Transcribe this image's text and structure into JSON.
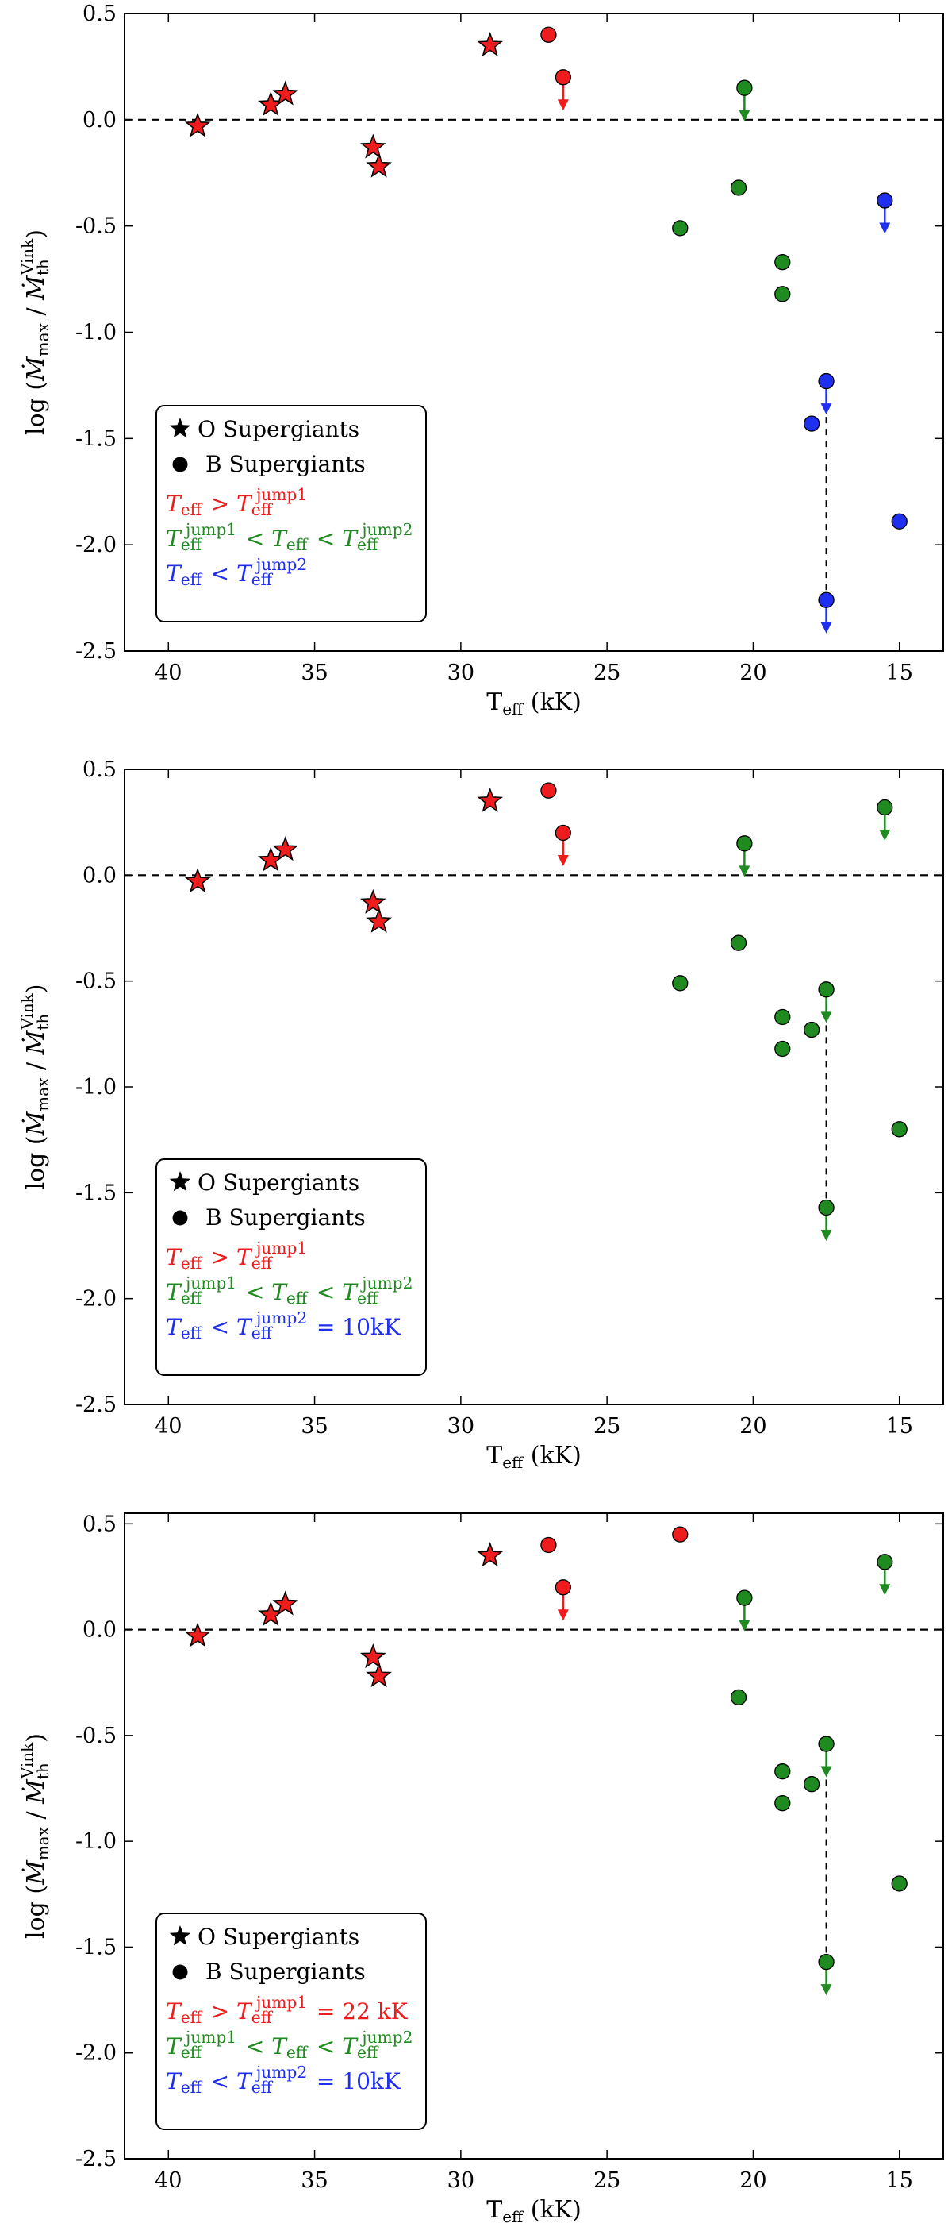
{
  "colors": {
    "red": "#ee1c1c",
    "green": "#1f8a1f",
    "blue": "#1f2ff0",
    "axis": "#000000"
  },
  "chart_data": [
    {
      "type": "scatter",
      "panel": "top",
      "xlabel": "T_eff (kK)",
      "ylabel": "log (Ṁ_max / Ṁ_th^Vink)",
      "xlim": [
        41.5,
        13.5
      ],
      "ylim": [
        -2.5,
        0.5
      ],
      "x_ticks": [
        40,
        35,
        30,
        25,
        20,
        15
      ],
      "y_ticks": [
        0.5,
        0.0,
        -0.5,
        -1.0,
        -1.5,
        -2.0,
        -2.5
      ],
      "reference_line": 0.0,
      "points": [
        {
          "x": 39.0,
          "y": -0.03,
          "marker": "star",
          "color": "red",
          "upper_limit": false
        },
        {
          "x": 36.5,
          "y": 0.07,
          "marker": "star",
          "color": "red",
          "upper_limit": false
        },
        {
          "x": 36.0,
          "y": 0.12,
          "marker": "star",
          "color": "red",
          "upper_limit": false
        },
        {
          "x": 33.0,
          "y": -0.13,
          "marker": "star",
          "color": "red",
          "upper_limit": false
        },
        {
          "x": 32.8,
          "y": -0.22,
          "marker": "star",
          "color": "red",
          "upper_limit": false
        },
        {
          "x": 29.0,
          "y": 0.35,
          "marker": "star",
          "color": "red",
          "upper_limit": false
        },
        {
          "x": 27.0,
          "y": 0.4,
          "marker": "circle",
          "color": "red",
          "upper_limit": false
        },
        {
          "x": 26.5,
          "y": 0.2,
          "marker": "circle",
          "color": "red",
          "upper_limit": true
        },
        {
          "x": 22.5,
          "y": -0.51,
          "marker": "circle",
          "color": "green",
          "upper_limit": false
        },
        {
          "x": 20.5,
          "y": -0.32,
          "marker": "circle",
          "color": "green",
          "upper_limit": false
        },
        {
          "x": 20.3,
          "y": 0.15,
          "marker": "circle",
          "color": "green",
          "upper_limit": true
        },
        {
          "x": 19.0,
          "y": -0.67,
          "marker": "circle",
          "color": "green",
          "upper_limit": false
        },
        {
          "x": 19.0,
          "y": -0.82,
          "marker": "circle",
          "color": "green",
          "upper_limit": false
        },
        {
          "x": 18.0,
          "y": -1.43,
          "marker": "circle",
          "color": "blue",
          "upper_limit": false
        },
        {
          "x": 17.5,
          "y": -1.23,
          "marker": "circle",
          "color": "blue",
          "upper_limit": true
        },
        {
          "x": 17.5,
          "y": -2.26,
          "marker": "circle",
          "color": "blue",
          "upper_limit": true
        },
        {
          "x": 15.5,
          "y": -0.38,
          "marker": "circle",
          "color": "blue",
          "upper_limit": true
        },
        {
          "x": 15.0,
          "y": -1.89,
          "marker": "circle",
          "color": "blue",
          "upper_limit": false
        }
      ],
      "connectors": [
        {
          "x": 17.5,
          "y1": -1.23,
          "y2": -2.26
        }
      ],
      "legend": {
        "position": "lower-left",
        "entries": [
          {
            "marker": "star",
            "color": "black",
            "label": "O Supergiants"
          },
          {
            "marker": "circle",
            "color": "black",
            "label": "B Supergiants"
          },
          {
            "marker": "none",
            "color": "red",
            "label": "T_eff > T_eff^jump1"
          },
          {
            "marker": "none",
            "color": "green",
            "label": "T_eff^jump1 < T_eff < T_eff^jump2"
          },
          {
            "marker": "none",
            "color": "blue",
            "label": "T_eff < T_eff^jump2"
          }
        ]
      }
    },
    {
      "type": "scatter",
      "panel": "middle",
      "xlabel": "T_eff (kK)",
      "ylabel": "log (Ṁ_max / Ṁ_th^Vink)",
      "xlim": [
        41.5,
        13.5
      ],
      "ylim": [
        -2.5,
        0.5
      ],
      "x_ticks": [
        40,
        35,
        30,
        25,
        20,
        15
      ],
      "y_ticks": [
        0.5,
        0.0,
        -0.5,
        -1.0,
        -1.5,
        -2.0,
        -2.5
      ],
      "reference_line": 0.0,
      "points": [
        {
          "x": 39.0,
          "y": -0.03,
          "marker": "star",
          "color": "red",
          "upper_limit": false
        },
        {
          "x": 36.5,
          "y": 0.07,
          "marker": "star",
          "color": "red",
          "upper_limit": false
        },
        {
          "x": 36.0,
          "y": 0.12,
          "marker": "star",
          "color": "red",
          "upper_limit": false
        },
        {
          "x": 33.0,
          "y": -0.13,
          "marker": "star",
          "color": "red",
          "upper_limit": false
        },
        {
          "x": 32.8,
          "y": -0.22,
          "marker": "star",
          "color": "red",
          "upper_limit": false
        },
        {
          "x": 29.0,
          "y": 0.35,
          "marker": "star",
          "color": "red",
          "upper_limit": false
        },
        {
          "x": 27.0,
          "y": 0.4,
          "marker": "circle",
          "color": "red",
          "upper_limit": false
        },
        {
          "x": 26.5,
          "y": 0.2,
          "marker": "circle",
          "color": "red",
          "upper_limit": true
        },
        {
          "x": 22.5,
          "y": -0.51,
          "marker": "circle",
          "color": "green",
          "upper_limit": false
        },
        {
          "x": 20.5,
          "y": -0.32,
          "marker": "circle",
          "color": "green",
          "upper_limit": false
        },
        {
          "x": 20.3,
          "y": 0.15,
          "marker": "circle",
          "color": "green",
          "upper_limit": true
        },
        {
          "x": 19.0,
          "y": -0.67,
          "marker": "circle",
          "color": "green",
          "upper_limit": false
        },
        {
          "x": 19.0,
          "y": -0.82,
          "marker": "circle",
          "color": "green",
          "upper_limit": false
        },
        {
          "x": 18.0,
          "y": -0.73,
          "marker": "circle",
          "color": "green",
          "upper_limit": false
        },
        {
          "x": 17.5,
          "y": -0.54,
          "marker": "circle",
          "color": "green",
          "upper_limit": true
        },
        {
          "x": 17.5,
          "y": -1.57,
          "marker": "circle",
          "color": "green",
          "upper_limit": true
        },
        {
          "x": 15.5,
          "y": 0.32,
          "marker": "circle",
          "color": "green",
          "upper_limit": true
        },
        {
          "x": 15.0,
          "y": -1.2,
          "marker": "circle",
          "color": "green",
          "upper_limit": false
        }
      ],
      "connectors": [
        {
          "x": 17.5,
          "y1": -0.54,
          "y2": -1.57
        }
      ],
      "legend": {
        "position": "lower-left",
        "entries": [
          {
            "marker": "star",
            "color": "black",
            "label": "O Supergiants"
          },
          {
            "marker": "circle",
            "color": "black",
            "label": "B Supergiants"
          },
          {
            "marker": "none",
            "color": "red",
            "label": "T_eff > T_eff^jump1"
          },
          {
            "marker": "none",
            "color": "green",
            "label": "T_eff^jump1 < T_eff < T_eff^jump2"
          },
          {
            "marker": "none",
            "color": "blue",
            "label": "T_eff < T_eff^jump2 = 10kK"
          }
        ]
      }
    },
    {
      "type": "scatter",
      "panel": "bottom",
      "xlabel": "T_eff (kK)",
      "ylabel": "log (Ṁ_max / Ṁ_th^Vink)",
      "xlim": [
        41.5,
        13.5
      ],
      "ylim": [
        -2.5,
        0.55
      ],
      "x_ticks": [
        40,
        35,
        30,
        25,
        20,
        15
      ],
      "y_ticks": [
        0.5,
        0.0,
        -0.5,
        -1.0,
        -1.5,
        -2.0,
        -2.5
      ],
      "reference_line": 0.0,
      "points": [
        {
          "x": 39.0,
          "y": -0.03,
          "marker": "star",
          "color": "red",
          "upper_limit": false
        },
        {
          "x": 36.5,
          "y": 0.07,
          "marker": "star",
          "color": "red",
          "upper_limit": false
        },
        {
          "x": 36.0,
          "y": 0.12,
          "marker": "star",
          "color": "red",
          "upper_limit": false
        },
        {
          "x": 33.0,
          "y": -0.13,
          "marker": "star",
          "color": "red",
          "upper_limit": false
        },
        {
          "x": 32.8,
          "y": -0.22,
          "marker": "star",
          "color": "red",
          "upper_limit": false
        },
        {
          "x": 29.0,
          "y": 0.35,
          "marker": "star",
          "color": "red",
          "upper_limit": false
        },
        {
          "x": 27.0,
          "y": 0.4,
          "marker": "circle",
          "color": "red",
          "upper_limit": false
        },
        {
          "x": 26.5,
          "y": 0.2,
          "marker": "circle",
          "color": "red",
          "upper_limit": true
        },
        {
          "x": 22.5,
          "y": 0.45,
          "marker": "circle",
          "color": "red",
          "upper_limit": false
        },
        {
          "x": 20.5,
          "y": -0.32,
          "marker": "circle",
          "color": "green",
          "upper_limit": false
        },
        {
          "x": 20.3,
          "y": 0.15,
          "marker": "circle",
          "color": "green",
          "upper_limit": true
        },
        {
          "x": 19.0,
          "y": -0.67,
          "marker": "circle",
          "color": "green",
          "upper_limit": false
        },
        {
          "x": 19.0,
          "y": -0.82,
          "marker": "circle",
          "color": "green",
          "upper_limit": false
        },
        {
          "x": 18.0,
          "y": -0.73,
          "marker": "circle",
          "color": "green",
          "upper_limit": false
        },
        {
          "x": 17.5,
          "y": -0.54,
          "marker": "circle",
          "color": "green",
          "upper_limit": true
        },
        {
          "x": 17.5,
          "y": -1.57,
          "marker": "circle",
          "color": "green",
          "upper_limit": true
        },
        {
          "x": 15.5,
          "y": 0.32,
          "marker": "circle",
          "color": "green",
          "upper_limit": true
        },
        {
          "x": 15.0,
          "y": -1.2,
          "marker": "circle",
          "color": "green",
          "upper_limit": false
        }
      ],
      "connectors": [
        {
          "x": 17.5,
          "y1": -0.54,
          "y2": -1.57
        }
      ],
      "legend": {
        "position": "lower-left",
        "entries": [
          {
            "marker": "star",
            "color": "black",
            "label": "O Supergiants"
          },
          {
            "marker": "circle",
            "color": "black",
            "label": "B Supergiants"
          },
          {
            "marker": "none",
            "color": "red",
            "label": "T_eff > T_eff^jump1 = 22 kK"
          },
          {
            "marker": "none",
            "color": "green",
            "label": "T_eff^jump1 < T_eff < T_eff^jump2"
          },
          {
            "marker": "none",
            "color": "blue",
            "label": "T_eff < T_eff^jump2 = 10kK"
          }
        ]
      }
    }
  ]
}
